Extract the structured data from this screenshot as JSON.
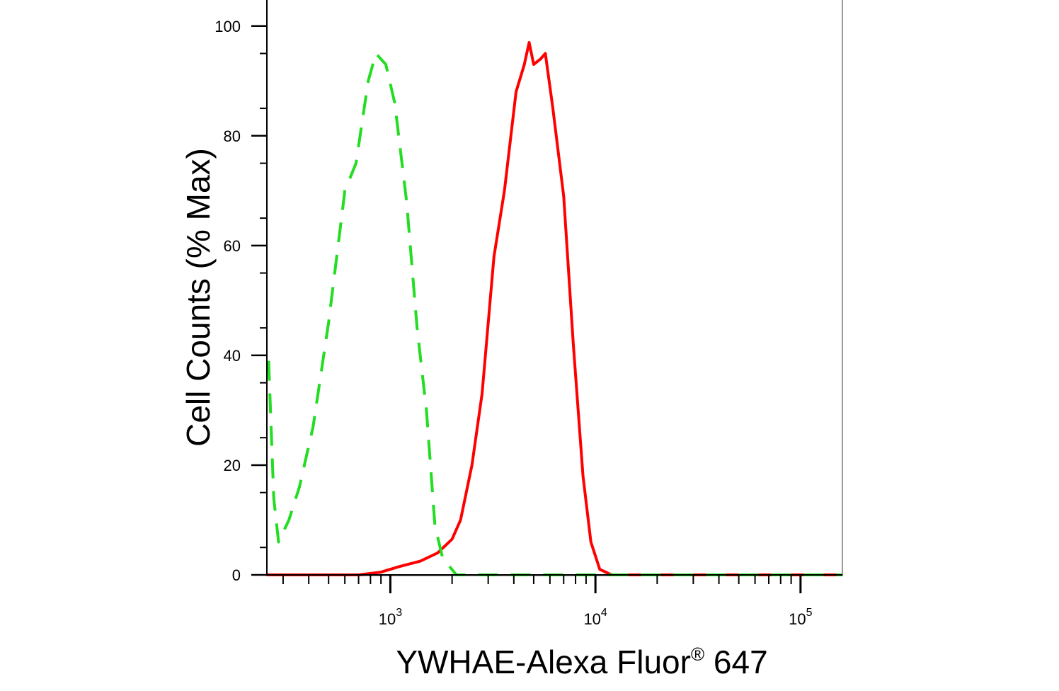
{
  "chart_data": {
    "type": "line",
    "title": "",
    "xlabel": "YWHAE-Alexa Fluor",
    "xlabel_superscript": "®",
    "xlabel_suffix": " 647",
    "ylabel": "Cell Counts (% Max)",
    "x_scale": "log",
    "xlim": [
      250,
      160000
    ],
    "ylim": [
      0,
      105
    ],
    "y_ticks": [
      0,
      20,
      40,
      60,
      80,
      100
    ],
    "x_major_ticks": [
      {
        "value": 1000,
        "base": "10",
        "exp": "3"
      },
      {
        "value": 10000,
        "base": "10",
        "exp": "4"
      },
      {
        "value": 100000,
        "base": "10",
        "exp": "5"
      }
    ],
    "grid": false,
    "legend": "none",
    "series": [
      {
        "color": "#ff0000",
        "style": "solid",
        "points": [
          [
            250,
            0
          ],
          [
            700,
            0
          ],
          [
            900,
            0.5
          ],
          [
            1100,
            1.5
          ],
          [
            1400,
            2.5
          ],
          [
            1700,
            4
          ],
          [
            2000,
            6.5
          ],
          [
            2200,
            10
          ],
          [
            2500,
            20
          ],
          [
            2800,
            33
          ],
          [
            3200,
            58
          ],
          [
            3600,
            70
          ],
          [
            4100,
            88
          ],
          [
            4500,
            93
          ],
          [
            4750,
            97
          ],
          [
            5000,
            93
          ],
          [
            5400,
            94
          ],
          [
            5700,
            95
          ],
          [
            6200,
            85
          ],
          [
            7000,
            69
          ],
          [
            7800,
            42
          ],
          [
            8700,
            18
          ],
          [
            9500,
            6
          ],
          [
            10500,
            1
          ],
          [
            12000,
            0
          ],
          [
            160000,
            0
          ]
        ]
      },
      {
        "color": "#22dd22",
        "style": "dashed",
        "points": [
          [
            255,
            39
          ],
          [
            270,
            14
          ],
          [
            285,
            6
          ],
          [
            320,
            10
          ],
          [
            360,
            16
          ],
          [
            420,
            27
          ],
          [
            500,
            46
          ],
          [
            600,
            70
          ],
          [
            680,
            75
          ],
          [
            780,
            90
          ],
          [
            850,
            95
          ],
          [
            950,
            93
          ],
          [
            1050,
            86
          ],
          [
            1200,
            68
          ],
          [
            1350,
            45
          ],
          [
            1500,
            30
          ],
          [
            1650,
            9
          ],
          [
            1800,
            3
          ],
          [
            2100,
            0
          ],
          [
            160000,
            0
          ]
        ]
      }
    ]
  }
}
